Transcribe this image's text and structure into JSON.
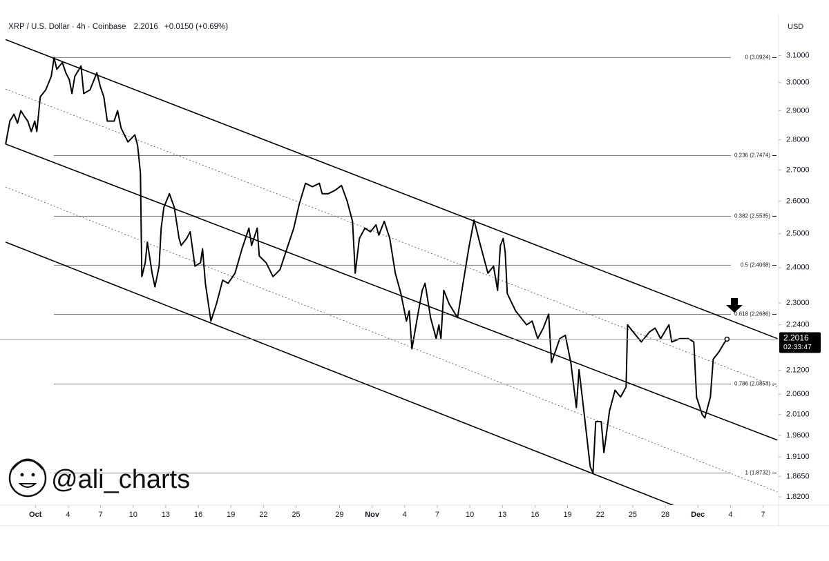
{
  "chart_data": {
    "type": "line",
    "title": "XRP / U.S. Dollar · 4h · Coinbase",
    "last_price_label": "2.2016",
    "change_label": "+0.0150 (+0.69%)",
    "currency": "USD",
    "countdown": "02:33:47",
    "watermark": "@ali_charts",
    "color": "#000000",
    "yscale": "log",
    "grid": false,
    "xlim": [
      -1.75,
      69.3
    ],
    "ylim": [
      1.805,
      3.26
    ],
    "xticks": [
      {
        "value": 1,
        "label": "Oct"
      },
      4,
      7,
      10,
      13,
      16,
      19,
      22,
      25,
      29,
      {
        "value": 32,
        "label": "Nov"
      },
      {
        "value": 35,
        "label": "4"
      },
      {
        "value": 38,
        "label": "7"
      },
      {
        "value": 41,
        "label": "10"
      },
      {
        "value": 44,
        "label": "13"
      },
      {
        "value": 47,
        "label": "16"
      },
      {
        "value": 50,
        "label": "19"
      },
      {
        "value": 53,
        "label": "22"
      },
      {
        "value": 56,
        "label": "25"
      },
      {
        "value": 59,
        "label": "28"
      },
      {
        "value": 62,
        "label": "Dec"
      },
      {
        "value": 65,
        "label": "4"
      },
      {
        "value": 68,
        "label": "7"
      }
    ],
    "yticks": [
      {
        "value": 3.1,
        "label": "3.1000"
      },
      {
        "value": 3.0,
        "label": "3.0000"
      },
      {
        "value": 2.9,
        "label": "2.9000"
      },
      {
        "value": 2.8,
        "label": "2.8000"
      },
      {
        "value": 2.7,
        "label": "2.7000"
      },
      {
        "value": 2.6,
        "label": "2.6000"
      },
      {
        "value": 2.5,
        "label": "2.5000"
      },
      {
        "value": 2.4,
        "label": "2.4000"
      },
      {
        "value": 2.3,
        "label": "2.3000"
      },
      {
        "value": 2.24,
        "label": "2.2400"
      },
      {
        "value": 2.12,
        "label": "2.1200"
      },
      {
        "value": 2.06,
        "label": "2.0600"
      },
      {
        "value": 2.01,
        "label": "2.0100"
      },
      {
        "value": 1.96,
        "label": "1.9600"
      },
      {
        "value": 1.91,
        "label": "1.9100"
      },
      {
        "value": 1.865,
        "label": "1.8650"
      },
      {
        "value": 1.82,
        "label": "1.8200"
      }
    ],
    "fib_levels": [
      {
        "value": 3.0924,
        "label": "0 (3.0924)"
      },
      {
        "value": 2.7474,
        "label": "0.236 (2.7474)"
      },
      {
        "value": 2.5535,
        "label": "0.382 (2.5535)"
      },
      {
        "value": 2.4068,
        "label": "0.5 (2.4068)"
      },
      {
        "value": 2.2686,
        "label": "0.618 (2.2686)"
      },
      {
        "value": 2.0853,
        "label": "0.786 (2.0853)"
      },
      {
        "value": 1.8732,
        "label": "1 (1.8732)"
      }
    ],
    "trendlines": [
      {
        "x": [
          -1.74,
          69.32
        ],
        "values": [
          3.16,
          2.203
        ],
        "style": "solid"
      },
      {
        "x": [
          -1.74,
          69.32
        ],
        "values": [
          2.977,
          2.078
        ],
        "style": "dotted"
      },
      {
        "x": [
          -1.74,
          69.32
        ],
        "values": [
          2.786,
          1.949
        ],
        "style": "solid"
      },
      {
        "x": [
          -1.74,
          69.32
        ],
        "values": [
          2.645,
          1.831
        ],
        "style": "dotted"
      },
      {
        "x": [
          -1.74,
          60.42
        ],
        "values": [
          2.475,
          1.795
        ],
        "style": "solid"
      }
    ],
    "x": [
      -1.74,
      -1.35,
      -0.97,
      -0.65,
      -0.34,
      -0.02,
      0.3,
      0.62,
      0.94,
      1.13,
      1.45,
      1.95,
      2.46,
      2.72,
      2.97,
      3.48,
      3.8,
      4.12,
      4.37,
      4.63,
      5.2,
      5.45,
      6.03,
      6.66,
      6.98,
      7.3,
      7.62,
      8.25,
      8.57,
      8.89,
      9.52,
      10.16,
      10.41,
      10.67,
      10.8,
      11.11,
      11.31,
      11.75,
      12.01,
      12.39,
      12.58,
      12.83,
      13.34,
      13.79,
      14.23,
      14.42,
      14.93,
      15.25,
      15.69,
      16.2,
      16.39,
      16.65,
      17.16,
      17.67,
      18.24,
      18.75,
      19.38,
      20.02,
      20.66,
      20.91,
      21.42,
      21.61,
      22.25,
      22.88,
      23.52,
      24.16,
      24.79,
      25.3,
      25.87,
      26.51,
      27.15,
      27.4,
      27.97,
      28.61,
      29.18,
      29.69,
      30.2,
      30.45,
      30.83,
      31.34,
      31.85,
      32.36,
      32.62,
      33.12,
      33.63,
      34.14,
      34.65,
      35.16,
      35.42,
      35.67,
      36.11,
      36.62,
      36.88,
      37.39,
      37.9,
      38.15,
      38.34,
      38.6,
      39.1,
      39.87,
      40.38,
      40.89,
      41.39,
      41.9,
      42.67,
      43.18,
      43.56,
      43.81,
      44.07,
      44.26,
      44.45,
      45.21,
      46.23,
      46.74,
      47.25,
      47.76,
      48.26,
      48.52,
      49.28,
      49.79,
      50.3,
      50.81,
      51.06,
      51.57,
      52.08,
      52.34,
      52.59,
      53.1,
      53.35,
      53.86,
      54.37,
      54.88,
      55.39,
      55.52,
      56.03,
      56.79,
      57.55,
      58.06,
      58.57,
      59.33,
      59.59,
      60.35,
      61.11,
      61.62,
      61.88,
      62.39,
      62.64,
      63.15,
      63.41,
      63.91,
      64.42,
      64.68
    ],
    "values": [
      2.786,
      2.864,
      2.888,
      2.857,
      2.9,
      2.881,
      2.864,
      2.828,
      2.864,
      2.828,
      2.949,
      2.974,
      3.023,
      3.092,
      3.049,
      3.074,
      3.036,
      3.011,
      2.961,
      3.023,
      3.061,
      2.961,
      2.974,
      3.036,
      2.986,
      2.949,
      2.864,
      2.864,
      2.9,
      2.84,
      2.793,
      2.817,
      2.781,
      2.69,
      2.374,
      2.414,
      2.475,
      2.384,
      2.345,
      2.404,
      2.517,
      2.581,
      2.624,
      2.581,
      2.486,
      2.465,
      2.486,
      2.506,
      2.404,
      2.414,
      2.455,
      2.355,
      2.25,
      2.297,
      2.364,
      2.355,
      2.384,
      2.455,
      2.517,
      2.465,
      2.517,
      2.434,
      2.414,
      2.374,
      2.394,
      2.455,
      2.517,
      2.592,
      2.657,
      2.646,
      2.657,
      2.624,
      2.624,
      2.635,
      2.65,
      2.602,
      2.538,
      2.384,
      2.486,
      2.517,
      2.506,
      2.527,
      2.496,
      2.538,
      2.486,
      2.384,
      2.326,
      2.25,
      2.278,
      2.176,
      2.25,
      2.335,
      2.355,
      2.259,
      2.203,
      2.24,
      2.203,
      2.335,
      2.297,
      2.259,
      2.355,
      2.455,
      2.542,
      2.475,
      2.384,
      2.404,
      2.335,
      2.465,
      2.486,
      2.445,
      2.326,
      2.278,
      2.24,
      2.25,
      2.203,
      2.231,
      2.269,
      2.14,
      2.203,
      2.212,
      2.14,
      2.027,
      2.122,
      2.002,
      1.888,
      1.873,
      1.993,
      1.993,
      1.92,
      2.019,
      2.07,
      2.053,
      2.078,
      2.24,
      2.221,
      2.194,
      2.221,
      2.231,
      2.203,
      2.24,
      2.194,
      2.203,
      2.203,
      2.194,
      2.053,
      2.01,
      2.002,
      2.053,
      2.149,
      2.167,
      2.191,
      2.2016
    ]
  }
}
